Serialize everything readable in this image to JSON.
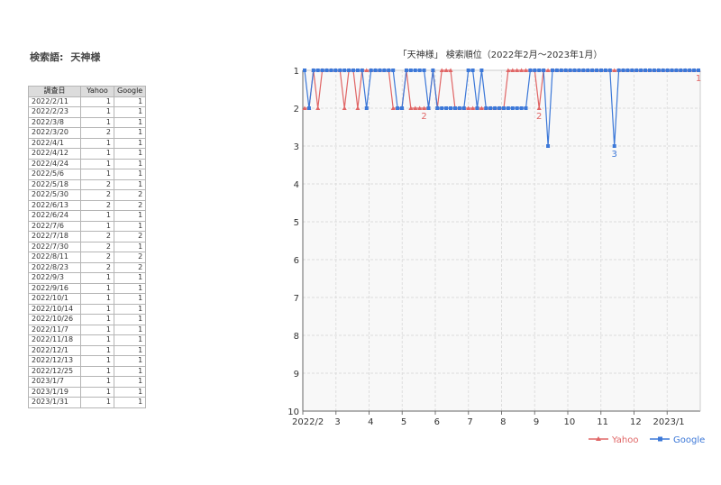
{
  "keyword": {
    "label": "検索語:",
    "value": "天神様"
  },
  "table": {
    "headers": [
      "調査日",
      "Yahoo",
      "Google"
    ],
    "rows": [
      [
        "2022/2/11",
        "1",
        "1"
      ],
      [
        "2022/2/23",
        "1",
        "1"
      ],
      [
        "2022/3/8",
        "1",
        "1"
      ],
      [
        "2022/3/20",
        "2",
        "1"
      ],
      [
        "2022/4/1",
        "1",
        "1"
      ],
      [
        "2022/4/12",
        "1",
        "1"
      ],
      [
        "2022/4/24",
        "1",
        "1"
      ],
      [
        "2022/5/6",
        "1",
        "1"
      ],
      [
        "2022/5/18",
        "2",
        "1"
      ],
      [
        "2022/5/30",
        "2",
        "2"
      ],
      [
        "2022/6/13",
        "2",
        "2"
      ],
      [
        "2022/6/24",
        "1",
        "1"
      ],
      [
        "2022/7/6",
        "1",
        "1"
      ],
      [
        "2022/7/18",
        "2",
        "2"
      ],
      [
        "2022/7/30",
        "2",
        "1"
      ],
      [
        "2022/8/11",
        "2",
        "2"
      ],
      [
        "2022/8/23",
        "2",
        "2"
      ],
      [
        "2022/9/3",
        "1",
        "1"
      ],
      [
        "2022/9/16",
        "1",
        "1"
      ],
      [
        "2022/10/1",
        "1",
        "1"
      ],
      [
        "2022/10/14",
        "1",
        "1"
      ],
      [
        "2022/10/26",
        "1",
        "1"
      ],
      [
        "2022/11/7",
        "1",
        "1"
      ],
      [
        "2022/11/18",
        "1",
        "1"
      ],
      [
        "2022/12/1",
        "1",
        "1"
      ],
      [
        "2022/12/13",
        "1",
        "1"
      ],
      [
        "2022/12/25",
        "1",
        "1"
      ],
      [
        "2023/1/7",
        "1",
        "1"
      ],
      [
        "2023/1/19",
        "1",
        "1"
      ],
      [
        "2023/1/31",
        "1",
        "1"
      ]
    ]
  },
  "chart_data": {
    "type": "line",
    "title": "「天神様」 検索順位（2022年2月～2023年1月）",
    "xlabel": "",
    "ylabel": "",
    "ylim": [
      1,
      10
    ],
    "y_inverted": true,
    "y_ticks": [
      "1",
      "2",
      "3",
      "4",
      "5",
      "6",
      "7",
      "8",
      "9",
      "10"
    ],
    "x_tick_labels": [
      "2022/2",
      "3",
      "4",
      "5",
      "6",
      "7",
      "8",
      "9",
      "10",
      "11",
      "12",
      "2023/1"
    ],
    "x_range_months": [
      "2022-02",
      "2023-01"
    ],
    "grid": true,
    "legend_position": "bottom-right",
    "series": [
      {
        "name": "Yahoo",
        "color": "#e06666",
        "marker": "triangle",
        "values": [
          2,
          2,
          1,
          2,
          1,
          1,
          1,
          1,
          1,
          2,
          1,
          1,
          2,
          1,
          1,
          1,
          1,
          1,
          1,
          1,
          2,
          2,
          2,
          1,
          2,
          2,
          2,
          2,
          2,
          1,
          2,
          1,
          1,
          1,
          2,
          2,
          2,
          2,
          2,
          2,
          2,
          2,
          2,
          2,
          2,
          2,
          1,
          1,
          1,
          1,
          1,
          1,
          1,
          2,
          1,
          1,
          1,
          1,
          1,
          1,
          1,
          1,
          1,
          1,
          1,
          1,
          1,
          1,
          1,
          1,
          1,
          1,
          1,
          1,
          1,
          1,
          1,
          1,
          1,
          1,
          1,
          1,
          1,
          1,
          1,
          1,
          1,
          1,
          1,
          1
        ]
      },
      {
        "name": "Google",
        "color": "#3c78d8",
        "marker": "square",
        "values": [
          1,
          2,
          1,
          1,
          1,
          1,
          1,
          1,
          1,
          1,
          1,
          1,
          1,
          1,
          2,
          1,
          1,
          1,
          1,
          1,
          1,
          2,
          2,
          1,
          1,
          1,
          1,
          1,
          2,
          1,
          2,
          2,
          2,
          2,
          2,
          2,
          2,
          1,
          1,
          2,
          1,
          2,
          2,
          2,
          2,
          2,
          2,
          2,
          2,
          2,
          2,
          1,
          1,
          1,
          1,
          3,
          1,
          1,
          1,
          1,
          1,
          1,
          1,
          1,
          1,
          1,
          1,
          1,
          1,
          1,
          3,
          1,
          1,
          1,
          1,
          1,
          1,
          1,
          1,
          1,
          1,
          1,
          1,
          1,
          1,
          1,
          1,
          1,
          1,
          1
        ]
      }
    ],
    "annotations": [
      {
        "series": "Yahoo",
        "text": "2",
        "index": 27
      },
      {
        "series": "Yahoo",
        "text": "2",
        "index": 53
      },
      {
        "series": "Yahoo",
        "text": "1",
        "index": 89
      },
      {
        "series": "Google",
        "text": "3",
        "index": 70
      }
    ]
  }
}
